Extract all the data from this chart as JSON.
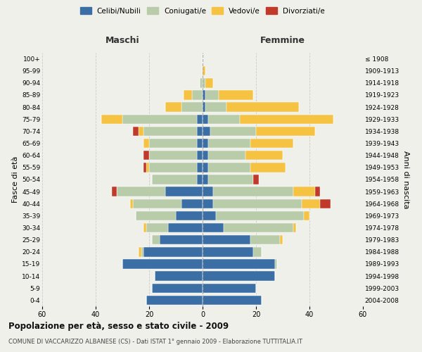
{
  "age_groups": [
    "0-4",
    "5-9",
    "10-14",
    "15-19",
    "20-24",
    "25-29",
    "30-34",
    "35-39",
    "40-44",
    "45-49",
    "50-54",
    "55-59",
    "60-64",
    "65-69",
    "70-74",
    "75-79",
    "80-84",
    "85-89",
    "90-94",
    "95-99",
    "100+"
  ],
  "birth_years": [
    "2004-2008",
    "1999-2003",
    "1994-1998",
    "1989-1993",
    "1984-1988",
    "1979-1983",
    "1974-1978",
    "1969-1973",
    "1964-1968",
    "1959-1963",
    "1954-1958",
    "1949-1953",
    "1944-1948",
    "1939-1943",
    "1934-1938",
    "1929-1933",
    "1924-1928",
    "1919-1923",
    "1914-1918",
    "1909-1913",
    "≤ 1908"
  ],
  "male": {
    "celibi": [
      21,
      19,
      18,
      30,
      22,
      16,
      13,
      10,
      8,
      14,
      2,
      2,
      2,
      2,
      2,
      2,
      0,
      0,
      0,
      0,
      0
    ],
    "coniugati": [
      0,
      0,
      0,
      0,
      1,
      3,
      8,
      15,
      18,
      18,
      17,
      18,
      18,
      18,
      20,
      28,
      8,
      4,
      1,
      0,
      0
    ],
    "vedovi": [
      0,
      0,
      0,
      0,
      1,
      0,
      1,
      0,
      1,
      0,
      0,
      1,
      0,
      2,
      2,
      8,
      6,
      3,
      0,
      0,
      0
    ],
    "divorziati": [
      0,
      0,
      0,
      0,
      0,
      0,
      0,
      0,
      0,
      2,
      0,
      1,
      2,
      0,
      2,
      0,
      0,
      0,
      0,
      0,
      0
    ]
  },
  "female": {
    "nubili": [
      22,
      20,
      27,
      27,
      19,
      18,
      8,
      5,
      4,
      4,
      2,
      2,
      2,
      2,
      3,
      2,
      1,
      1,
      0,
      0,
      0
    ],
    "coniugate": [
      0,
      0,
      0,
      1,
      3,
      11,
      26,
      33,
      33,
      30,
      17,
      16,
      14,
      16,
      17,
      12,
      8,
      5,
      1,
      0,
      0
    ],
    "vedove": [
      0,
      0,
      0,
      0,
      0,
      1,
      1,
      2,
      7,
      8,
      0,
      13,
      14,
      16,
      22,
      35,
      27,
      13,
      3,
      1,
      0
    ],
    "divorziate": [
      0,
      0,
      0,
      0,
      0,
      0,
      0,
      0,
      4,
      2,
      2,
      0,
      0,
      0,
      0,
      0,
      0,
      0,
      0,
      0,
      0
    ]
  },
  "colors": {
    "celibi_nubili": "#3a6ea5",
    "coniugati": "#b8ccaa",
    "vedovi": "#f5c242",
    "divorziati": "#c0392b"
  },
  "title": "Popolazione per età, sesso e stato civile - 2009",
  "subtitle": "COMUNE DI VACCARIZZO ALBANESE (CS) - Dati ISTAT 1° gennaio 2009 - Elaborazione TUTTITALIA.IT",
  "ylabel_left": "Fasce di età",
  "ylabel_right": "Anni di nascita",
  "xlabel_male": "Maschi",
  "xlabel_female": "Femmine",
  "xlim": 60,
  "background_color": "#f0f0eb"
}
